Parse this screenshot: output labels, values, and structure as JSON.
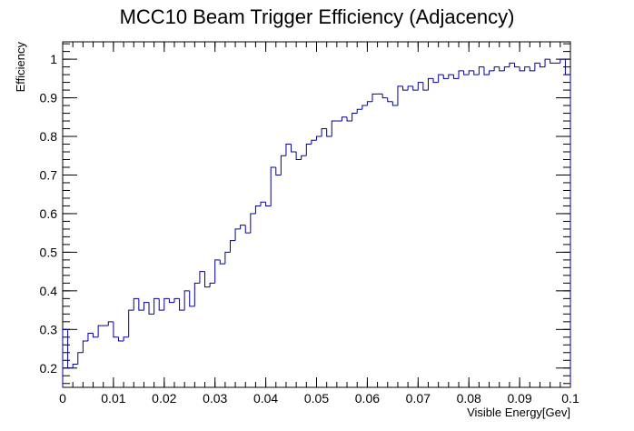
{
  "chart_data": {
    "type": "histogram",
    "title": "MCC10 Beam Trigger Efficiency (Adjacency)",
    "x_label": "Visible Energy[Gev]",
    "y_label": "Efficiency",
    "color": "#000099",
    "xlim": [
      0,
      0.1
    ],
    "ylim": [
      0.15,
      1.045
    ],
    "xticks": [
      0,
      0.01,
      0.02,
      0.03,
      0.04,
      0.05,
      0.06,
      0.07,
      0.08,
      0.09,
      0.1
    ],
    "yticks": [
      0.2,
      0.3,
      0.4,
      0.5,
      0.6,
      0.7,
      0.8,
      0.9,
      1
    ],
    "bins": [
      0,
      0.001,
      0.002,
      0.003,
      0.004,
      0.005,
      0.006,
      0.007,
      0.008,
      0.009,
      0.01,
      0.011,
      0.012,
      0.013,
      0.014,
      0.015,
      0.016,
      0.017,
      0.018,
      0.019,
      0.02,
      0.021,
      0.022,
      0.023,
      0.024,
      0.025,
      0.026,
      0.027,
      0.028,
      0.029,
      0.03,
      0.031,
      0.032,
      0.033,
      0.034,
      0.035,
      0.036,
      0.037,
      0.038,
      0.039,
      0.04,
      0.041,
      0.042,
      0.043,
      0.044,
      0.045,
      0.046,
      0.047,
      0.048,
      0.049,
      0.05,
      0.051,
      0.052,
      0.053,
      0.054,
      0.055,
      0.056,
      0.057,
      0.058,
      0.059,
      0.06,
      0.061,
      0.062,
      0.063,
      0.064,
      0.065,
      0.066,
      0.067,
      0.068,
      0.069,
      0.07,
      0.071,
      0.072,
      0.073,
      0.074,
      0.075,
      0.076,
      0.077,
      0.078,
      0.079,
      0.08,
      0.081,
      0.082,
      0.083,
      0.084,
      0.085,
      0.086,
      0.087,
      0.088,
      0.089,
      0.09,
      0.091,
      0.092,
      0.093,
      0.094,
      0.095,
      0.096,
      0.097,
      0.098,
      0.099,
      0.1
    ],
    "values": [
      0.3,
      0.2,
      0.21,
      0.24,
      0.27,
      0.29,
      0.28,
      0.31,
      0.31,
      0.32,
      0.28,
      0.27,
      0.28,
      0.35,
      0.38,
      0.35,
      0.37,
      0.34,
      0.38,
      0.35,
      0.38,
      0.37,
      0.38,
      0.35,
      0.4,
      0.36,
      0.42,
      0.45,
      0.41,
      0.42,
      0.48,
      0.47,
      0.5,
      0.53,
      0.56,
      0.57,
      0.55,
      0.6,
      0.62,
      0.63,
      0.62,
      0.72,
      0.7,
      0.75,
      0.78,
      0.76,
      0.74,
      0.75,
      0.78,
      0.79,
      0.8,
      0.82,
      0.8,
      0.84,
      0.84,
      0.85,
      0.84,
      0.86,
      0.87,
      0.88,
      0.89,
      0.91,
      0.91,
      0.9,
      0.89,
      0.88,
      0.93,
      0.92,
      0.93,
      0.92,
      0.94,
      0.92,
      0.95,
      0.94,
      0.96,
      0.95,
      0.96,
      0.95,
      0.97,
      0.96,
      0.97,
      0.96,
      0.98,
      0.96,
      0.97,
      0.98,
      0.97,
      0.98,
      0.99,
      0.98,
      0.97,
      0.98,
      0.97,
      0.99,
      0.98,
      1.0,
      0.99,
      0.99,
      1.0,
      0.96
    ]
  }
}
